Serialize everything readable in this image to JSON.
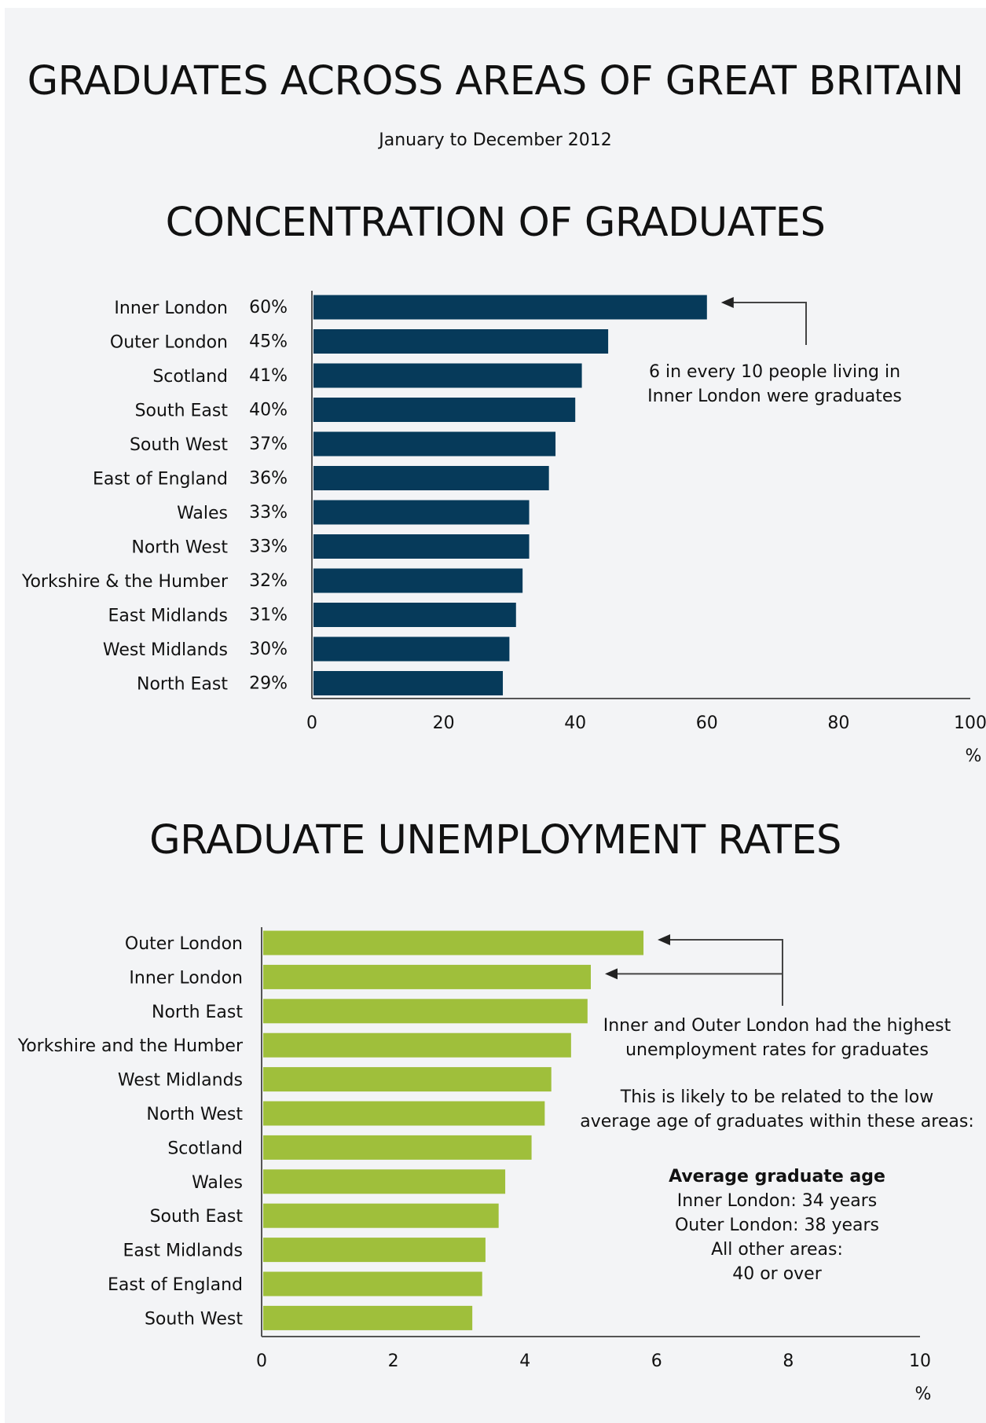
{
  "header": {
    "title": "GRADUATES ACROSS AREAS OF GREAT BRITAIN",
    "subtitle": "January to December 2012"
  },
  "colors": {
    "concentration_bar": "#063a5a",
    "unemployment_bar": "#9fbf3b",
    "axis": "#555555"
  },
  "chart_data": [
    {
      "type": "bar",
      "orientation": "horizontal",
      "title": "CONCENTRATION OF GRADUATES",
      "unit": "%",
      "categories": [
        "Inner London",
        "Outer London",
        "Scotland",
        "South East",
        "South West",
        "East of England",
        "Wales",
        "North West",
        "Yorkshire & the Humber",
        "East Midlands",
        "West Midlands",
        "North East"
      ],
      "values": [
        60,
        45,
        41,
        40,
        37,
        36,
        33,
        33,
        32,
        31,
        30,
        29
      ],
      "value_labels": [
        "60%",
        "45%",
        "41%",
        "40%",
        "37%",
        "36%",
        "33%",
        "33%",
        "32%",
        "31%",
        "30%",
        "29%"
      ],
      "xlim": [
        0,
        100
      ],
      "xticks": [
        "0",
        "20",
        "40",
        "60",
        "80",
        "100"
      ],
      "grid": false,
      "annotation": {
        "lines": [
          "6 in every 10 people living in",
          "Inner London were graduates"
        ],
        "points_to": [
          "Inner London"
        ]
      }
    },
    {
      "type": "bar",
      "orientation": "horizontal",
      "title": "GRADUATE UNEMPLOYMENT RATES",
      "unit": "%",
      "categories": [
        "Outer London",
        "Inner London",
        "North East",
        "Yorkshire and the Humber",
        "West Midlands",
        "North West",
        "Scotland",
        "Wales",
        "South East",
        "East Midlands",
        "East of England",
        "South West"
      ],
      "values": [
        5.8,
        5.0,
        4.95,
        4.7,
        4.4,
        4.3,
        4.1,
        3.7,
        3.6,
        3.4,
        3.35,
        3.2
      ],
      "xlim": [
        0,
        10
      ],
      "xticks": [
        "0",
        "2",
        "4",
        "6",
        "8",
        "10"
      ],
      "grid": false,
      "annotation": {
        "lines": [
          "Inner and Outer London had the highest",
          "unemployment rates for graduates"
        ],
        "points_to": [
          "Outer London",
          "Inner London"
        ]
      }
    }
  ],
  "notes": {
    "explanation_lines": [
      "This is likely to be related to the low",
      "average age of graduates within these areas:"
    ],
    "age_heading": "Average graduate age",
    "age_lines": [
      "Inner London: 34 years",
      "Outer London: 38 years",
      "All other areas:",
      "40 or over"
    ]
  }
}
